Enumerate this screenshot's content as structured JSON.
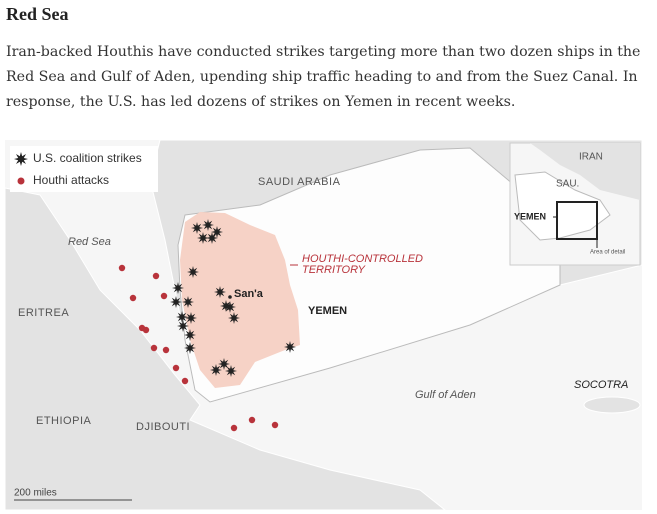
{
  "header": {
    "title": "Red Sea",
    "description": "Iran-backed Houthis have conducted strikes targeting more than two dozen ships in the Red Sea and Gulf of Aden, upending ship traffic heading to and from the Suez Canal. In response, the U.S. has led dozens of strikes on Yemen in recent weeks."
  },
  "legend": [
    "U.S. coalition strikes",
    "Houthi attacks"
  ],
  "map": {
    "saudi_arabia": "SAUDI ARABIA",
    "red_sea": "Red Sea",
    "eritrea": "ERITREA",
    "ethiopia": "ETHIOPIA",
    "djibouti": "DJIBOUTI",
    "yemen": "YEMEN",
    "sanaa": "San'a",
    "houthi_territory": [
      "HOUTHI-CONTROLLED",
      "TERRITORY"
    ],
    "gulf_of_aden": "Gulf of Aden",
    "socotra": "SOCOTRA",
    "scale": "200 miles"
  },
  "inset": {
    "iran": "IRAN",
    "saudi": "SAU.",
    "yemen": "YEMEN",
    "area": "Area of detail"
  }
}
